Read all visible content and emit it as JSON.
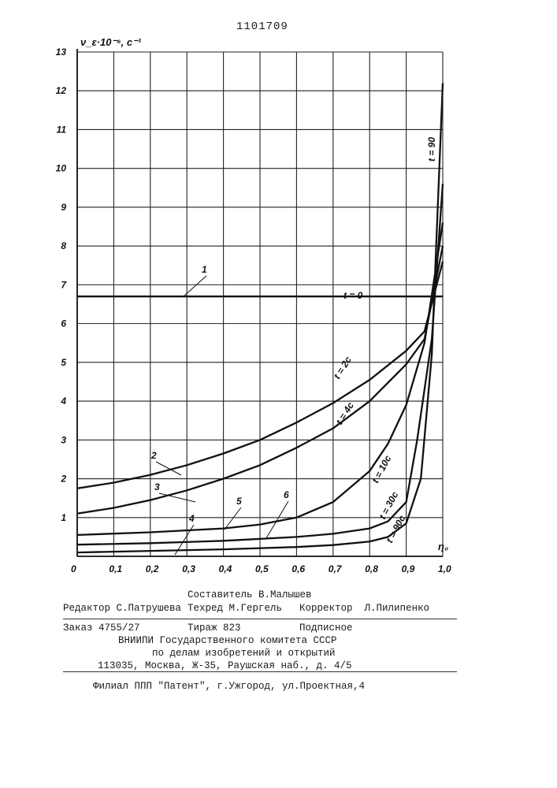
{
  "page_number": "1101709",
  "chart_data": {
    "type": "line",
    "ylabel": "ν_ε·10⁻⁶, c⁻¹",
    "xlabel": "η₀",
    "xlim": [
      0,
      1.0
    ],
    "ylim": [
      0,
      13
    ],
    "x_ticks": [
      "0",
      "0,1",
      "0,2",
      "0,3",
      "0,4",
      "0,5",
      "0,6",
      "0,7",
      "0,8",
      "0,9",
      "1,0"
    ],
    "y_ticks": [
      "1",
      "2",
      "3",
      "4",
      "5",
      "6",
      "7",
      "8",
      "9",
      "10",
      "11",
      "12",
      "13"
    ],
    "grid": true,
    "series": [
      {
        "name": "1",
        "annotation": "t = 0",
        "x": [
          0,
          1.0
        ],
        "y": [
          6.7,
          6.7
        ]
      },
      {
        "name": "2",
        "annotation": "t = 2c",
        "x": [
          0,
          0.1,
          0.2,
          0.3,
          0.4,
          0.5,
          0.6,
          0.7,
          0.8,
          0.9,
          0.95,
          1.0
        ],
        "y": [
          1.75,
          1.9,
          2.1,
          2.35,
          2.65,
          3.0,
          3.45,
          3.95,
          4.55,
          5.3,
          5.8,
          7.6
        ]
      },
      {
        "name": "3",
        "annotation": "t = 4c",
        "x": [
          0,
          0.1,
          0.2,
          0.3,
          0.4,
          0.5,
          0.6,
          0.7,
          0.8,
          0.9,
          0.95,
          1.0
        ],
        "y": [
          1.1,
          1.25,
          1.45,
          1.7,
          2.0,
          2.35,
          2.8,
          3.3,
          4.0,
          4.95,
          5.6,
          8.0
        ]
      },
      {
        "name": "4",
        "annotation": "t = 10c",
        "x": [
          0,
          0.2,
          0.4,
          0.5,
          0.6,
          0.7,
          0.8,
          0.85,
          0.9,
          0.95,
          1.0
        ],
        "y": [
          0.55,
          0.62,
          0.72,
          0.82,
          1.0,
          1.4,
          2.2,
          2.9,
          3.9,
          5.5,
          8.6
        ]
      },
      {
        "name": "5",
        "annotation": "t = 30c",
        "x": [
          0,
          0.2,
          0.4,
          0.6,
          0.7,
          0.8,
          0.85,
          0.9,
          0.93,
          0.97,
          1.0
        ],
        "y": [
          0.3,
          0.34,
          0.4,
          0.5,
          0.58,
          0.72,
          0.9,
          1.4,
          3.0,
          5.6,
          9.6
        ]
      },
      {
        "name": "6",
        "annotation": "t = 90c",
        "x": [
          0,
          0.2,
          0.4,
          0.6,
          0.7,
          0.8,
          0.85,
          0.9,
          0.94,
          0.97,
          1.0
        ],
        "y": [
          0.1,
          0.14,
          0.18,
          0.24,
          0.29,
          0.38,
          0.5,
          0.85,
          2.0,
          5.2,
          12.2
        ]
      }
    ],
    "annotations": [
      {
        "text": "t = 0",
        "series": "1"
      },
      {
        "text": "t = 2c",
        "series": "2"
      },
      {
        "text": "t = 4c",
        "series": "3"
      },
      {
        "text": "t = 10c",
        "series": "4"
      },
      {
        "text": "t = 30c",
        "series": "5"
      },
      {
        "text": "t = 90c",
        "series": "6"
      },
      {
        "text": "t = 90",
        "series": "vertical"
      }
    ]
  },
  "footer": {
    "compiler": "Составитель В.Малышев",
    "editor": "Редактор С.Патрушева",
    "techred": "Техред М.Гергель",
    "corrector": "Корректор  Л.Пилипенко",
    "order": "Заказ 4755/27",
    "circulation": "Тираж 823",
    "subscription": "Подписное",
    "org1": "ВНИИПИ Государственного комитета СССР",
    "org2": "по делам изобретений и открытий",
    "address": "113035, Москва, Ж-35, Раушская наб., д. 4/5",
    "branch": "Филиал ППП \"Патент\", г.Ужгород, ул.Проектная,4"
  }
}
